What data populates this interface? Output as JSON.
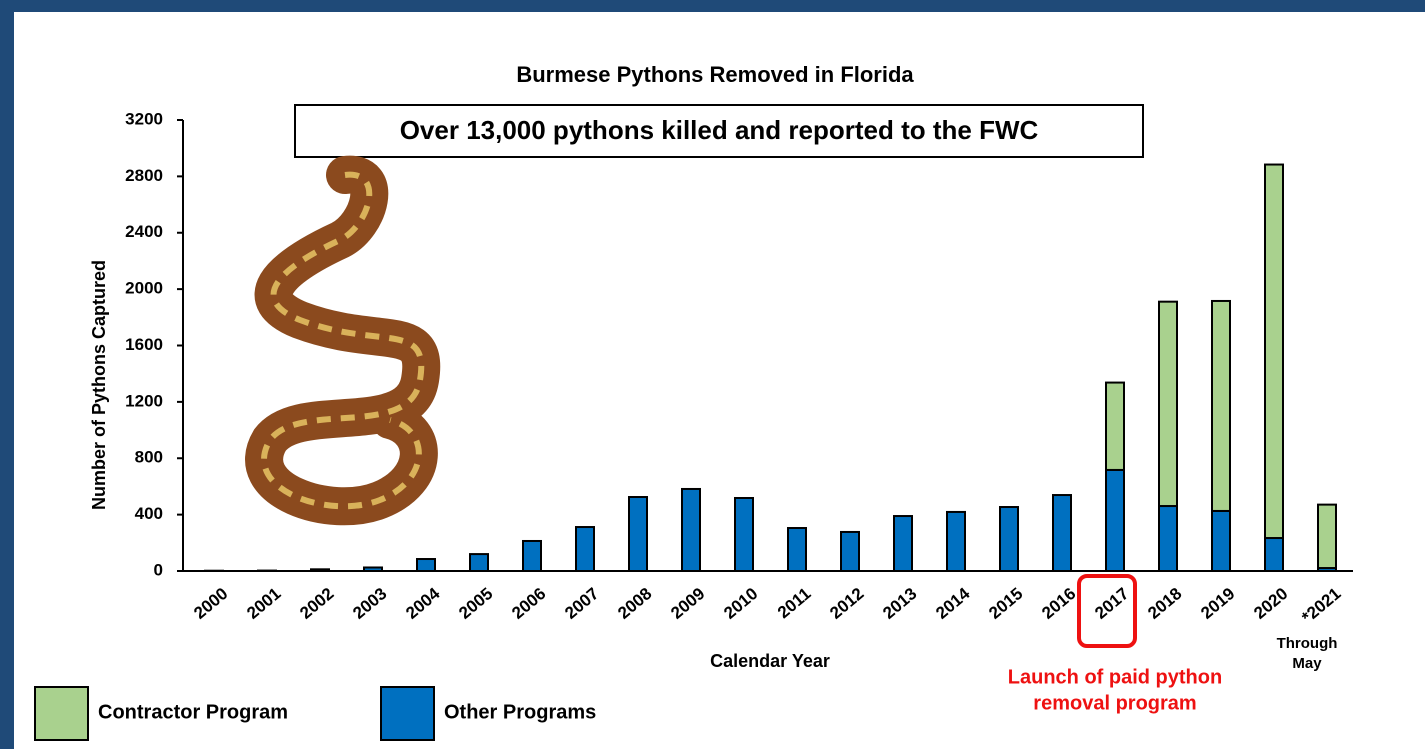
{
  "chart_data": {
    "type": "stacked_bar",
    "title": "Burmese Pythons Removed in Florida",
    "headline": "Over 13,000 pythons killed and reported to the FWC",
    "x_label": "Calendar Year",
    "y_label": "Number of  Pythons Captured",
    "categories": [
      "2000",
      "2001",
      "2002",
      "2003",
      "2004",
      "2005",
      "2006",
      "2007",
      "2008",
      "2009",
      "2010",
      "2011",
      "2012",
      "2013",
      "2014",
      "2015",
      "2016",
      "2017",
      "2018",
      "2019",
      "2020",
      "*2021"
    ],
    "series": [
      {
        "name": "Other Programs",
        "color": "#0070c0",
        "values": [
          2,
          3,
          12,
          25,
          85,
          120,
          213,
          312,
          525,
          582,
          518,
          305,
          277,
          390,
          419,
          454,
          539,
          717,
          461,
          426,
          234,
          21
        ]
      },
      {
        "name": "Contractor Program",
        "color": "#a9d18e",
        "values": [
          null,
          null,
          null,
          null,
          null,
          null,
          null,
          null,
          null,
          null,
          null,
          null,
          null,
          null,
          null,
          null,
          null,
          620,
          1450,
          1490,
          2650,
          450
        ]
      }
    ],
    "ylim": [
      0,
      3200
    ],
    "yticks": [
      0,
      400,
      800,
      1200,
      1600,
      2000,
      2400,
      2800,
      3200
    ],
    "footnote": "Through May",
    "callout": {
      "category": "2017",
      "lines": [
        "Launch of paid python",
        "removal program"
      ]
    }
  }
}
